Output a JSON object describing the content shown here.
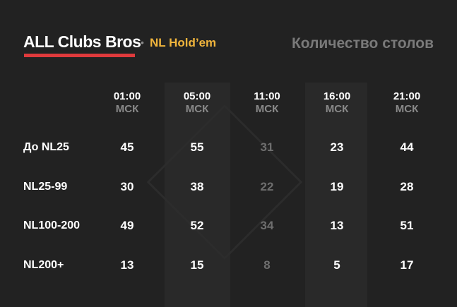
{
  "header": {
    "brand": "ALL Clubs Bros",
    "separator": "•",
    "game": "NL Hold’em",
    "title": "Количество столов"
  },
  "colors": {
    "accent_red": "#e03a3c",
    "accent_yellow": "#f0b43c",
    "background": "#222222"
  },
  "columns": [
    {
      "time": "01:00",
      "tz": "МСК"
    },
    {
      "time": "05:00",
      "tz": "МСК"
    },
    {
      "time": "11:00",
      "tz": "МСК"
    },
    {
      "time": "16:00",
      "tz": "МСК"
    },
    {
      "time": "21:00",
      "tz": "МСК"
    }
  ],
  "rows": [
    {
      "label": "До NL25",
      "values": [
        "45",
        "55",
        "31",
        "23",
        "44"
      ]
    },
    {
      "label": "NL25-99",
      "values": [
        "30",
        "38",
        "22",
        "19",
        "28"
      ]
    },
    {
      "label": "NL100-200",
      "values": [
        "49",
        "52",
        "34",
        "13",
        "51"
      ]
    },
    {
      "label": "NL200+",
      "values": [
        "13",
        "15",
        "8",
        "5",
        "17"
      ]
    }
  ],
  "dimmed_column": 2,
  "highlighted_columns": [
    1,
    3
  ]
}
